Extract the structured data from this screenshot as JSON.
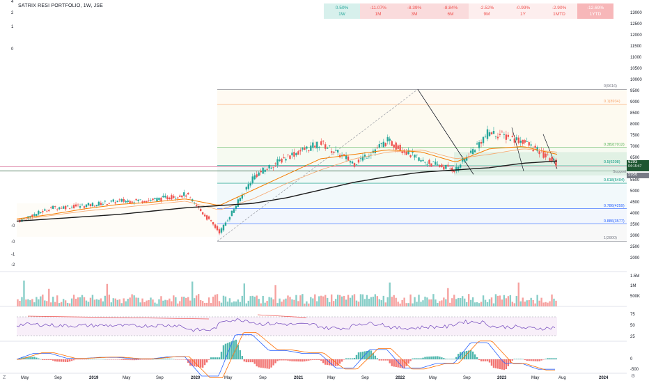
{
  "title": "SATRIX RESI PORTFOLIO, 1W, JSE",
  "performance": [
    {
      "value": "0.50%",
      "period": "1W",
      "status": "up",
      "bg": "#d7f0ec",
      "fg": "#26a69a"
    },
    {
      "value": "-11.07%",
      "period": "1M",
      "status": "down",
      "bg": "#fadbdc",
      "fg": "#ef5350"
    },
    {
      "value": "-8.39%",
      "period": "3M",
      "status": "down",
      "bg": "#fadbdc",
      "fg": "#ef5350"
    },
    {
      "value": "-8.84%",
      "period": "6M",
      "status": "down",
      "bg": "#fadbdc",
      "fg": "#ef5350"
    },
    {
      "value": "-2.52%",
      "period": "9M",
      "status": "down",
      "bg": "#fdeeee",
      "fg": "#ef5350"
    },
    {
      "value": "-0.99%",
      "period": "1Y",
      "status": "down",
      "bg": "#fdeeee",
      "fg": "#ef5350"
    },
    {
      "value": "-2.90%",
      "period": "1MTD",
      "status": "down",
      "bg": "#fdeeee",
      "fg": "#ef5350"
    },
    {
      "value": "-12.69%",
      "period": "1YTD",
      "status": "down",
      "bg": "#f7b7b9",
      "fg": "#ffffff"
    }
  ],
  "price_axis": [
    "13000",
    "12500",
    "12000",
    "11500",
    "11000",
    "10500",
    "10000",
    "9500",
    "9000",
    "8500",
    "8000",
    "7500",
    "7000",
    "6500",
    "6000",
    "5500",
    "5000",
    "4500",
    "4000",
    "3500",
    "3000",
    "2500",
    "2000"
  ],
  "left_axis": [
    "4",
    "2",
    "1",
    "0",
    "-0",
    "-0",
    "-1",
    "-2"
  ],
  "volume_axis": [
    "1.5M",
    "1M",
    "500K"
  ],
  "rsi_axis": [
    "75",
    "50",
    "25"
  ],
  "macd_axis": [
    "0",
    "-500"
  ],
  "time_axis": [
    "May",
    "Sep",
    "2019",
    "May",
    "Sep",
    "2020",
    "May",
    "Sep",
    "2021",
    "May",
    "Sep",
    "2022",
    "May",
    "Sep",
    "2023",
    "May",
    "Aug",
    "2024"
  ],
  "price_tags": {
    "last": "6293",
    "countdown": "04:15:47",
    "support_label": "Support",
    "support_value": "5956"
  },
  "fib_levels": [
    {
      "label": "0(9616)",
      "color": "#787b86"
    },
    {
      "label": "0.1(8934)",
      "color": "#f7a56b"
    },
    {
      "label": "0.382(7012)",
      "color": "#4caf50"
    },
    {
      "label": "0.5(6208)",
      "color": "#089981"
    },
    {
      "label": "0.618(5404)",
      "color": "#089981"
    },
    {
      "label": "0.786(4259)",
      "color": "#2962ff"
    },
    {
      "label": "0.886(3577)",
      "color": "#2962ff"
    },
    {
      "label": "1(2800)",
      "color": "#787b86"
    }
  ],
  "controls": {
    "zoom_icon": "Z",
    "settings_icon": "gear"
  },
  "chart_data": {
    "type": "line",
    "title": "SATRIX RESI PORTFOLIO, 1W, JSE",
    "x": [
      "2018-05",
      "2018-09",
      "2019-01",
      "2019-05",
      "2019-09",
      "2020-01",
      "2020-05",
      "2020-09",
      "2021-01",
      "2021-05",
      "2021-09",
      "2022-01",
      "2022-05",
      "2022-09",
      "2023-01",
      "2023-05",
      "2023-08"
    ],
    "series": [
      {
        "values": [
          3700,
          4300,
          4400,
          4600,
          4650,
          4900,
          3200,
          5700,
          6600,
          7200,
          6300,
          7300,
          6400,
          6000,
          7700,
          7300,
          6293
        ]
      },
      {
        "values": [
          3800,
          4000,
          4250,
          4450,
          4550,
          4700,
          4400,
          5100,
          5800,
          6500,
          6700,
          6900,
          6800,
          6350,
          6950,
          7050,
          6700
        ]
      },
      {
        "values": [
          3750,
          3950,
          4150,
          4300,
          4450,
          4600,
          4200,
          4700,
          5400,
          6000,
          6500,
          6800,
          6900,
          6500,
          6700,
          6950,
          6800
        ]
      },
      {
        "values": [
          3700,
          3800,
          3900,
          4000,
          4150,
          4300,
          4400,
          4500,
          4750,
          5100,
          5450,
          5700,
          5900,
          6000,
          6100,
          6300,
          6400
        ]
      }
    ],
    "ylim": [
      2000,
      13000
    ],
    "grid": false
  }
}
